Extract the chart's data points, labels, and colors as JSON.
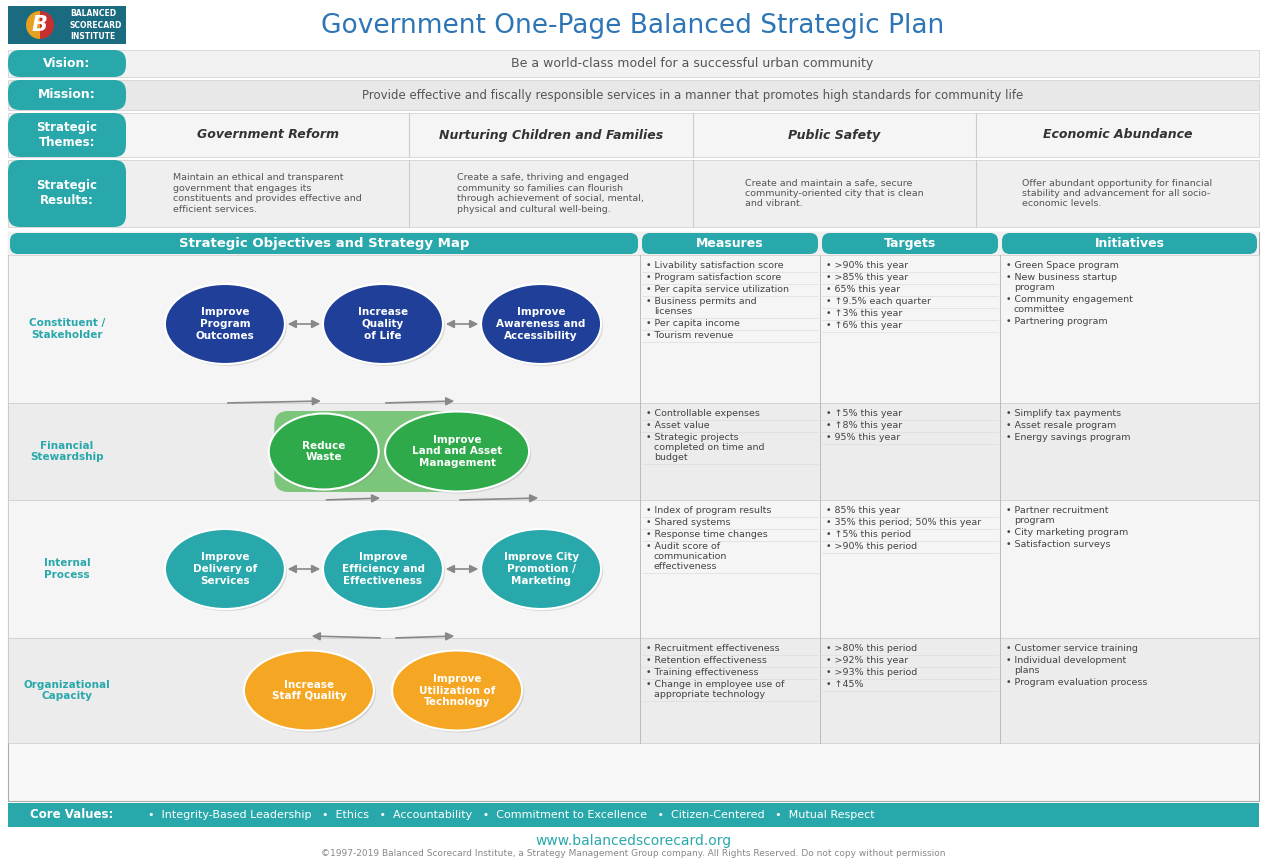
{
  "title": "Government One-Page Balanced Strategic Plan",
  "title_color": "#2E75B6",
  "title_fontsize": 19,
  "teal": "#29A8AB",
  "blue_ellipse": "#1F3F99",
  "teal_ellipse": "#29A8AB",
  "green_ellipse": "#2EAA4A",
  "orange_ellipse": "#F5A623",
  "green_bg": "#5CBB5C",
  "vision_text": "Be a world-class model for a successful urban community",
  "mission_text": "Provide effective and fiscally responsible services in a manner that promotes high standards for community life",
  "themes": [
    "Government Reform",
    "Nurturing Children and Families",
    "Public Safety",
    "Economic Abundance"
  ],
  "results": [
    "Maintain an ethical and transparent\ngovernment that engages its\nconstituents and provides effective and\nefficient services.",
    "Create a safe, thriving and engaged\ncommunity so families can flourish\nthrough achievement of social, mental,\nphysical and cultural well-being.",
    "Create and maintain a safe, secure\ncommunity-oriented city that is clean\nand vibrant.",
    "Offer abundant opportunity for financial\nstability and advancement for all socio-\neconomic levels."
  ],
  "row_labels": [
    "Constituent /\nStakeholder",
    "Financial\nStewardship",
    "Internal\nProcess",
    "Organizational\nCapacity"
  ],
  "measures": [
    [
      "Livability satisfaction score",
      "Program satisfaction score",
      "Per capita service utilization",
      "Business permits and\nlicenses",
      "Per capita income",
      "Tourism revenue"
    ],
    [
      "Controllable expenses",
      "Asset value",
      "Strategic projects\ncompleted on time and\nbudget"
    ],
    [
      "Index of program results",
      "Shared systems",
      "Response time changes",
      "Audit score of\ncommunication\neffectiveness"
    ],
    [
      "Recruitment effectiveness",
      "Retention effectiveness",
      "Training effectiveness",
      "Change in employee use of\nappropriate technology"
    ]
  ],
  "targets": [
    [
      ">90% this year",
      ">85% this year",
      "65% this year",
      "↑9.5% each quarter",
      "↑3% this year",
      "↑6% this year"
    ],
    [
      "↑5% this year",
      "↑8% this year",
      "95% this year"
    ],
    [
      "85% this year",
      "35% this period; 50% this year",
      "↑5% this period",
      ">90% this period"
    ],
    [
      ">80% this period",
      ">92% this year",
      ">93% this period",
      "↑45%"
    ]
  ],
  "initiatives": [
    [
      "Green Space program",
      "New business startup\nprogram",
      "Community engagement\ncommittee",
      "Partnering program"
    ],
    [
      "Simplify tax payments",
      "Asset resale program",
      "Energy savings program"
    ],
    [
      "Partner recruitment\nprogram",
      "City marketing program",
      "Satisfaction surveys"
    ],
    [
      "Customer service training",
      "Individual development\nplans",
      "Program evaluation process"
    ]
  ],
  "core_values": "  •  Integrity-Based Leadership   •  Ethics   •  Accountability   •  Commitment to Excellence   •  Citizen-Centered   •  Mutual Respect",
  "footer_url": "www.balancedscorecard.org",
  "footer_copy": "©1997-2019 Balanced Scorecard Institute, a Strategy Management Group company. All Rights Reserved. Do not copy without permission"
}
